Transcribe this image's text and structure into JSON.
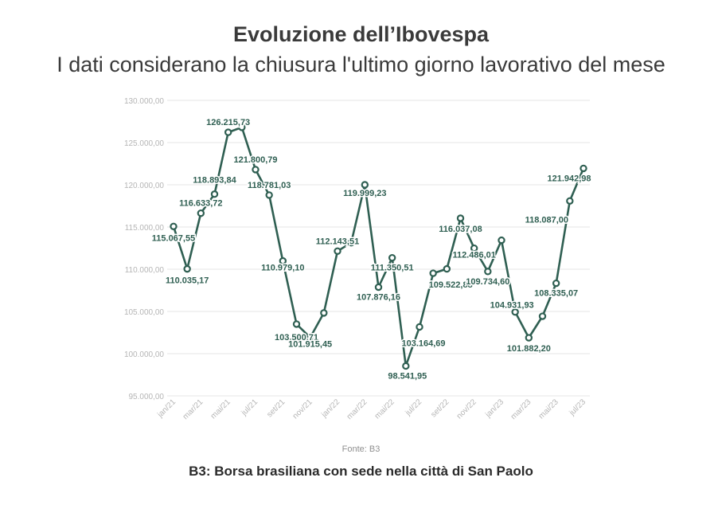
{
  "title": "Evoluzione dell’Ibovespa",
  "subtitle": "I dati considerano la chiusura l'ultimo giorno lavorativo del mese",
  "source": "Fonte: B3",
  "footnote": "B3: Borsa brasiliana con sede nella città di San Paolo",
  "colors": {
    "line": "#2f5f52",
    "grid": "#e6e6e6",
    "axis_text": "#b5b5b5",
    "label": "#2f5f52"
  },
  "chart_data": {
    "type": "line",
    "x": [
      "jan/21",
      "fev/21",
      "mar/21",
      "abr/21",
      "mai/21",
      "jun/21",
      "jul/21",
      "ago/21",
      "set/21",
      "out/21",
      "nov/21",
      "dez/21",
      "jan/22",
      "fev/22",
      "mar/22",
      "abr/22",
      "mai/22",
      "jun/22",
      "jul/22",
      "ago/22",
      "set/22",
      "out/22",
      "nov/22",
      "dez/22",
      "jan/23",
      "fev/23",
      "mar/23",
      "abr/23",
      "mai/23",
      "jun/23",
      "jul/23"
    ],
    "xticks": [
      "jan/21",
      "mar/21",
      "mai/21",
      "jul/21",
      "set/21",
      "nov/21",
      "jan/22",
      "mar/22",
      "mai/22",
      "jul/22",
      "set/22",
      "nov/22",
      "jan/23",
      "mar/23",
      "mai/23",
      "jul/23"
    ],
    "values": [
      115067.55,
      110035.17,
      116633.72,
      118893.84,
      126215.73,
      126801.66,
      121800.79,
      118781.03,
      110979.1,
      103500.71,
      101915.45,
      104822.44,
      112143.51,
      113141.94,
      119999.23,
      107876.16,
      111350.51,
      98541.95,
      103164.69,
      109522.88,
      110036.79,
      116037.08,
      112486.01,
      109734.6,
      113430.54,
      104931.93,
      101882.2,
      104431.63,
      108335.07,
      118087.0,
      121942.98
    ],
    "labels": [
      {
        "i": 0,
        "text": "115.067,55"
      },
      {
        "i": 1,
        "text": "110.035,17"
      },
      {
        "i": 2,
        "text": "116.633,72"
      },
      {
        "i": 3,
        "text": "118.893,84"
      },
      {
        "i": 4,
        "text": "126.215,73"
      },
      {
        "i": 6,
        "text": "121.800,79"
      },
      {
        "i": 7,
        "text": "118.781,03"
      },
      {
        "i": 8,
        "text": "110.979,10"
      },
      {
        "i": 9,
        "text": "103.500,71"
      },
      {
        "i": 10,
        "text": "101.915,45"
      },
      {
        "i": 12,
        "text": "112.143,51"
      },
      {
        "i": 14,
        "text": "119.999,23"
      },
      {
        "i": 15,
        "text": "107.876,16"
      },
      {
        "i": 16,
        "text": "111.350,51"
      },
      {
        "i": 17,
        "text": "98.541,95"
      },
      {
        "i": 18,
        "text": "103.164,69"
      },
      {
        "i": 19,
        "text": "109.522,88"
      },
      {
        "i": 21,
        "text": "116.037,08"
      },
      {
        "i": 22,
        "text": "112.486,01"
      },
      {
        "i": 23,
        "text": "109.734,60"
      },
      {
        "i": 25,
        "text": "104.931,93"
      },
      {
        "i": 26,
        "text": "101.882,20"
      },
      {
        "i": 28,
        "text": "108.335,07"
      },
      {
        "i": 29,
        "text": "118.087,00"
      },
      {
        "i": 30,
        "text": "121.942,98"
      }
    ],
    "yticks": [
      "95.000,00",
      "100.000,00",
      "105.000,00",
      "110.000,00",
      "115.000,00",
      "120.000,00",
      "125.000,00",
      "130.000,00"
    ],
    "ylim": [
      95000,
      130000
    ],
    "grid": true,
    "legend": "none"
  }
}
